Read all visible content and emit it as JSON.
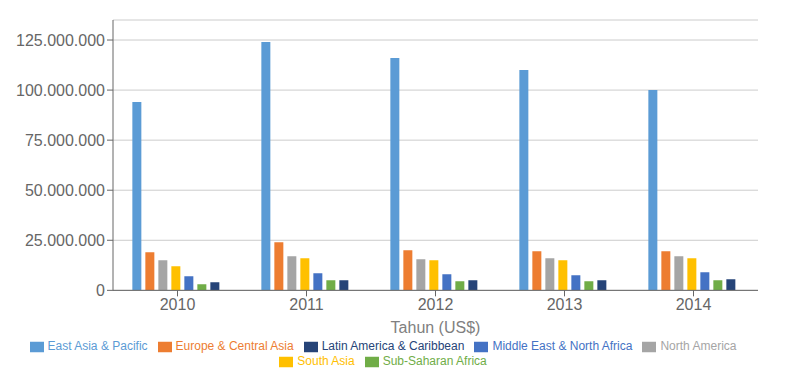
{
  "chart_data": {
    "type": "bar",
    "xlabel": "Tahun (US$)",
    "categories": [
      "2010",
      "2011",
      "2012",
      "2013",
      "2014"
    ],
    "series": [
      {
        "name": "East Asia & Pacific",
        "color": "#5B9BD5",
        "values": [
          94000000,
          124000000,
          116000000,
          110000000,
          100000000
        ]
      },
      {
        "name": "Europe & Central Asia",
        "color": "#ED7D31",
        "values": [
          19000000,
          24000000,
          20000000,
          19500000,
          19500000
        ]
      },
      {
        "name": "North America",
        "color": "#A5A5A5",
        "values": [
          15000000,
          17000000,
          15500000,
          16000000,
          17000000
        ]
      },
      {
        "name": "South Asia",
        "color": "#FFC000",
        "values": [
          12000000,
          16000000,
          15000000,
          15000000,
          16000000
        ]
      },
      {
        "name": "Middle East & North Africa",
        "color": "#4472C4",
        "values": [
          7000000,
          8500000,
          8000000,
          7500000,
          9000000
        ]
      },
      {
        "name": "Sub-Saharan Africa",
        "color": "#70AD47",
        "values": [
          3000000,
          5000000,
          4500000,
          4500000,
          5000000
        ]
      },
      {
        "name": "Latin America & Caribbean",
        "color": "#264478",
        "values": [
          4000000,
          5000000,
          5000000,
          5000000,
          5500000
        ]
      }
    ],
    "ylim": [
      0,
      135000000
    ],
    "yticks": [
      0,
      {
        "value": 25000000,
        "label": "25.000.000"
      },
      {
        "value": 50000000,
        "label": "50.000.000"
      },
      {
        "value": 75000000,
        "label": "75.000.000"
      },
      {
        "value": 100000000,
        "label": "100.000.000"
      },
      {
        "value": 125000000,
        "label": "125.000.000"
      }
    ],
    "grid": true,
    "legend": "bottom"
  }
}
